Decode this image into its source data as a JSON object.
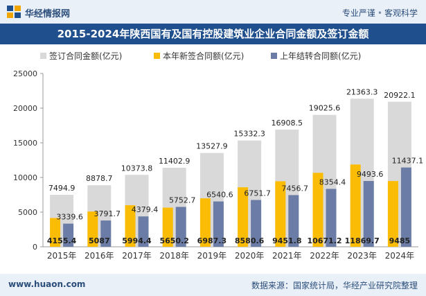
{
  "header": {
    "site_name": "华经情报网",
    "slogan_left": "专业严谨",
    "slogan_right": "客观科学"
  },
  "footer": {
    "url": "www.huaon.com",
    "source": "数据来源：国家统计局，华经产业研究院整理"
  },
  "colors": {
    "header_bg": "#e9f0f8",
    "title_bg": "#1f4f8c",
    "total": "#d9d9d9",
    "new": "#fbbc05",
    "carry": "#6b7da6"
  },
  "chart_data": {
    "type": "bar",
    "title": "2015-2024年陕西国有及国有控股建筑业企业合同金额及签订金额",
    "categories": [
      "2015年",
      "2016年",
      "2017年",
      "2018年",
      "2019年",
      "2020年",
      "2021年",
      "2022年",
      "2023年",
      "2024年"
    ],
    "series": [
      {
        "name": "签订合同金额(亿元)",
        "values": [
          7494.9,
          8878.7,
          10373.8,
          11402.9,
          13527.9,
          15332.3,
          16908.5,
          19025.6,
          21363.3,
          20922.1
        ]
      },
      {
        "name": "本年新签合同额(亿元)",
        "values": [
          4155.4,
          5087,
          5994.4,
          5650.2,
          6987.3,
          8580.6,
          9451.8,
          10671.2,
          11869.7,
          9485
        ]
      },
      {
        "name": "上年结转合同额(亿元)",
        "values": [
          3339.6,
          3791.7,
          4379.4,
          5752.7,
          6540.6,
          6751.7,
          7456.7,
          8354.4,
          9493.6,
          11437.1
        ]
      }
    ],
    "yticks": [
      0,
      5000,
      10000,
      15000,
      20000,
      25000
    ],
    "ylim": [
      0,
      25000
    ],
    "grid": false,
    "legend": "top"
  }
}
